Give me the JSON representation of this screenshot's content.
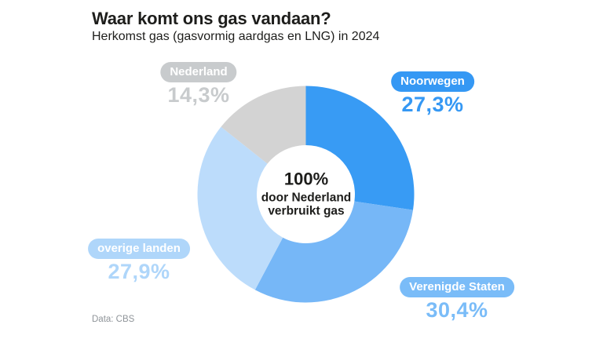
{
  "header": {
    "title": "Waar komt ons gas vandaan?",
    "subtitle": "Herkomst gas (gasvormig aardgas en LNG) in 2024"
  },
  "chart_data": {
    "type": "pie",
    "subtype": "donut",
    "title": "Waar komt ons gas vandaan?",
    "subtitle": "Herkomst gas (gasvormig aardgas en LNG) in 2024",
    "unit": "%",
    "categories": [
      "Noorwegen",
      "Verenigde Staten",
      "overige landen",
      "Nederland"
    ],
    "values": [
      27.3,
      30.4,
      27.9,
      14.3
    ],
    "value_labels": [
      "27,3%",
      "30,4%",
      "27,9%",
      "14,3%"
    ],
    "slice_colors": [
      "#389BF4",
      "#76B7F7",
      "#BCDCFB",
      "#D3D3D3"
    ],
    "label_colors": [
      "#3598F4",
      "#7ABCF8",
      "#AFD6FA",
      "#C8CBCD"
    ],
    "start_angle_deg": 0,
    "direction": "clockwise",
    "center_label": [
      "100%",
      "door Nederland",
      "verbruikt gas"
    ]
  },
  "footer": {
    "source": "Data: CBS"
  }
}
